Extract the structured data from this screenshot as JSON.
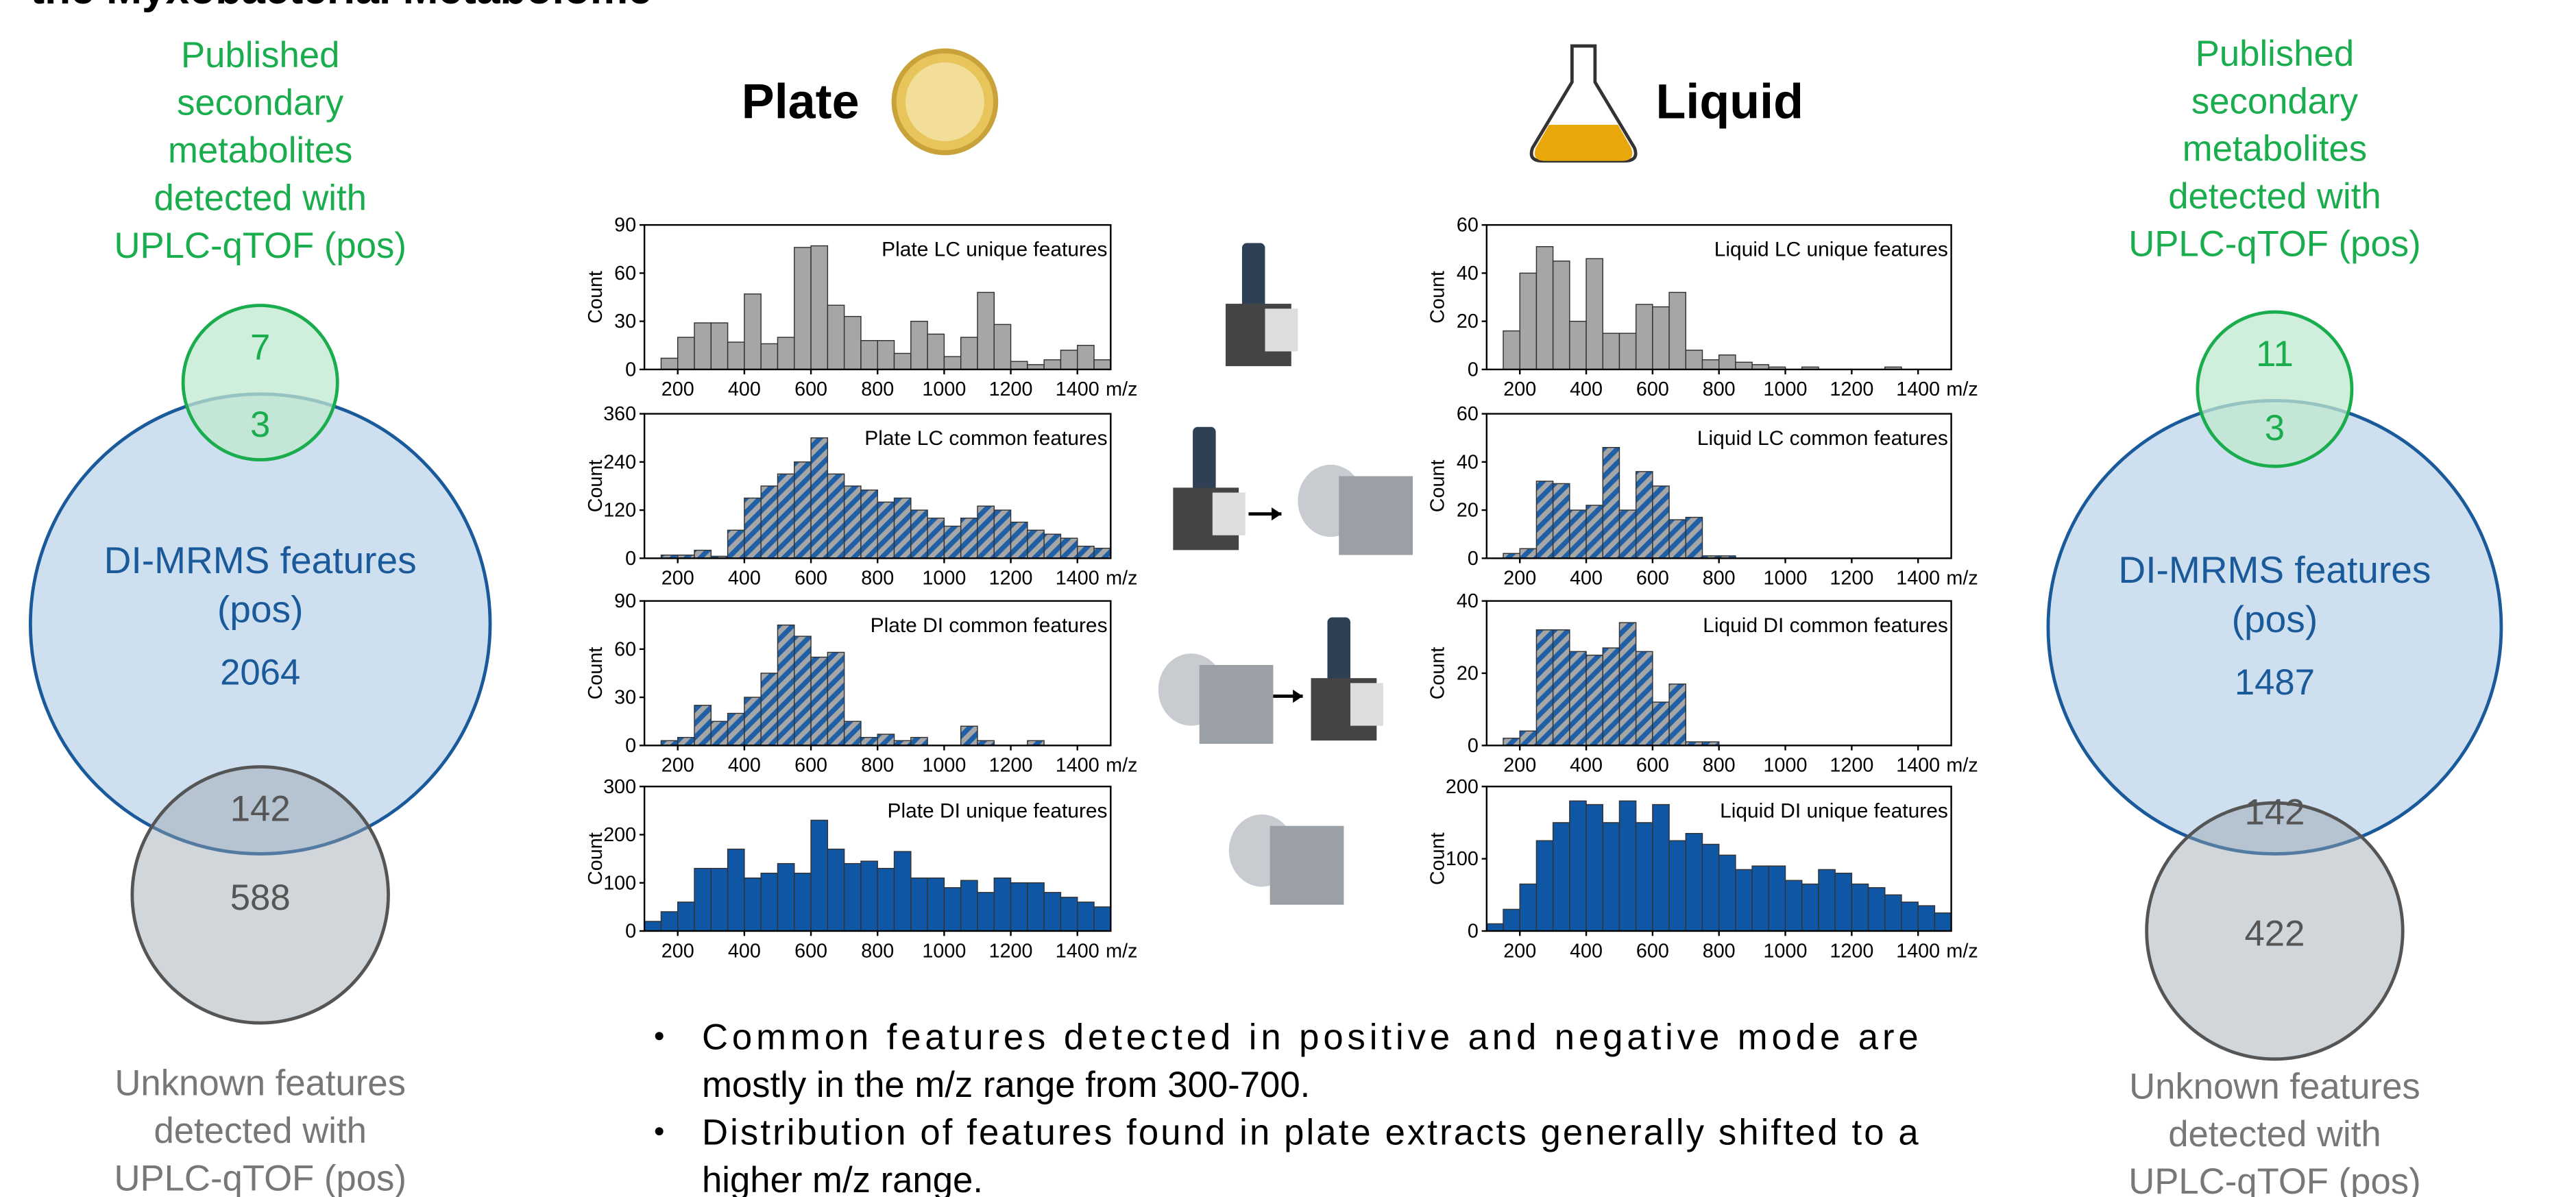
{
  "title": "the Myxobacterial Metabolome",
  "headers": {
    "plate": "Plate",
    "liquid": "Liquid"
  },
  "venn_left": {
    "published_label": [
      "Published",
      "secondary",
      "metabolites",
      "detected with",
      "UPLC-qTOF (pos)"
    ],
    "published_only": 7,
    "overlap_published": 3,
    "di_label": [
      "DI-MRMS features",
      "(pos)"
    ],
    "di_count": 2064,
    "overlap_unknown": 142,
    "unknown_only": 588,
    "unknown_label": [
      "Unknown features",
      "detected with",
      "UPLC-qTOF (pos)"
    ]
  },
  "venn_right": {
    "published_label": [
      "Published",
      "secondary",
      "metabolites",
      "detected with",
      "UPLC-qTOF (pos)"
    ],
    "published_only": 11,
    "overlap_published": 3,
    "di_label": [
      "DI-MRMS features",
      "(pos)"
    ],
    "di_count": 1487,
    "overlap_unknown": 142,
    "unknown_only": 422,
    "unknown_label": [
      "Unknown features",
      "detected with",
      "UPLC-qTOF (pos)"
    ]
  },
  "bullets": [
    [
      "Common features detected in positive and negative mode are",
      "mostly in the m/z range from 300-700."
    ],
    [
      "Distribution of features found in plate extracts generally shifted to a",
      "higher m/z range."
    ]
  ],
  "chart_data": [
    {
      "type": "histogram",
      "title": "Plate LC unique features",
      "x_label": "m/z",
      "y_label": "Count",
      "color": "#a6a6a6",
      "bins": [
        100,
        150,
        200,
        250,
        300,
        350,
        400,
        450,
        500,
        550,
        600,
        650,
        700,
        750,
        800,
        850,
        900,
        950,
        1000,
        1050,
        1100,
        1150,
        1200,
        1250,
        1300,
        1350,
        1400,
        1450,
        1500
      ],
      "counts": [
        0,
        7,
        20,
        29,
        29,
        17,
        47,
        16,
        20,
        76,
        77,
        40,
        33,
        18,
        18,
        10,
        30,
        22,
        8,
        20,
        48,
        28,
        5,
        3,
        6,
        12,
        15,
        6
      ],
      "xlim": [
        100,
        1500
      ],
      "xticks": [
        200,
        400,
        600,
        800,
        1000,
        1200,
        1400
      ],
      "ylim": [
        0,
        90
      ],
      "yticks": [
        0,
        30,
        60,
        90
      ]
    },
    {
      "type": "histogram",
      "title": "Plate LC common features",
      "x_label": "m/z",
      "y_label": "Count",
      "color": "#a6a6a6",
      "hatch_color": "#1f5fa6",
      "bins": [
        100,
        150,
        200,
        250,
        300,
        350,
        400,
        450,
        500,
        550,
        600,
        650,
        700,
        750,
        800,
        850,
        900,
        950,
        1000,
        1050,
        1100,
        1150,
        1200,
        1250,
        1300,
        1350,
        1400,
        1450,
        1500
      ],
      "counts": [
        0,
        8,
        8,
        20,
        5,
        70,
        150,
        180,
        210,
        240,
        300,
        210,
        180,
        170,
        140,
        150,
        120,
        100,
        80,
        100,
        130,
        120,
        90,
        70,
        60,
        50,
        30,
        25
      ],
      "xlim": [
        100,
        1500
      ],
      "xticks": [
        200,
        400,
        600,
        800,
        1000,
        1200,
        1400
      ],
      "ylim": [
        0,
        360
      ],
      "yticks": [
        0,
        120,
        240,
        360
      ]
    },
    {
      "type": "histogram",
      "title": "Plate DI common features",
      "x_label": "m/z",
      "y_label": "Count",
      "color": "#1f5fa6",
      "hatch_color": "#a6a6a6",
      "bins": [
        100,
        150,
        200,
        250,
        300,
        350,
        400,
        450,
        500,
        550,
        600,
        650,
        700,
        750,
        800,
        850,
        900,
        950,
        1000,
        1050,
        1100,
        1150,
        1200,
        1250,
        1300,
        1350,
        1400,
        1450,
        1500
      ],
      "counts": [
        0,
        3,
        5,
        25,
        15,
        20,
        30,
        45,
        75,
        68,
        55,
        58,
        15,
        5,
        7,
        3,
        5,
        0,
        0,
        12,
        3,
        0,
        0,
        3,
        0,
        0,
        0,
        0
      ],
      "xlim": [
        100,
        1500
      ],
      "xticks": [
        200,
        400,
        600,
        800,
        1000,
        1200,
        1400
      ],
      "ylim": [
        0,
        90
      ],
      "yticks": [
        0,
        30,
        60,
        90
      ]
    },
    {
      "type": "histogram",
      "title": "Plate DI unique features",
      "x_label": "m/z",
      "y_label": "Count",
      "color": "#0f57a5",
      "bins": [
        100,
        150,
        200,
        250,
        300,
        350,
        400,
        450,
        500,
        550,
        600,
        650,
        700,
        750,
        800,
        850,
        900,
        950,
        1000,
        1050,
        1100,
        1150,
        1200,
        1250,
        1300,
        1350,
        1400,
        1450,
        1500
      ],
      "counts": [
        20,
        40,
        60,
        130,
        130,
        170,
        110,
        120,
        140,
        120,
        230,
        170,
        140,
        145,
        130,
        165,
        110,
        110,
        90,
        105,
        80,
        110,
        100,
        100,
        80,
        70,
        60,
        50
      ],
      "xlim": [
        100,
        1500
      ],
      "xticks": [
        200,
        400,
        600,
        800,
        1000,
        1200,
        1400
      ],
      "ylim": [
        0,
        300
      ],
      "yticks": [
        0,
        100,
        200,
        300
      ]
    },
    {
      "type": "histogram",
      "title": "Liquid LC unique features",
      "x_label": "m/z",
      "y_label": "Count",
      "color": "#a6a6a6",
      "bins": [
        100,
        150,
        200,
        250,
        300,
        350,
        400,
        450,
        500,
        550,
        600,
        650,
        700,
        750,
        800,
        850,
        900,
        950,
        1000,
        1050,
        1100,
        1150,
        1200,
        1250,
        1300,
        1350,
        1400,
        1450,
        1500
      ],
      "counts": [
        0,
        16,
        40,
        51,
        45,
        20,
        46,
        15,
        15,
        27,
        26,
        32,
        8,
        4,
        6,
        3,
        2,
        1,
        0,
        1,
        0,
        0,
        0,
        0,
        1,
        0,
        0,
        0
      ],
      "xlim": [
        100,
        1500
      ],
      "xticks": [
        200,
        400,
        600,
        800,
        1000,
        1200,
        1400
      ],
      "ylim": [
        0,
        60
      ],
      "yticks": [
        0,
        20,
        40,
        60
      ]
    },
    {
      "type": "histogram",
      "title": "Liquid LC common features",
      "x_label": "m/z",
      "y_label": "Count",
      "color": "#a6a6a6",
      "hatch_color": "#1f5fa6",
      "bins": [
        100,
        150,
        200,
        250,
        300,
        350,
        400,
        450,
        500,
        550,
        600,
        650,
        700,
        750,
        800,
        850,
        900,
        950,
        1000,
        1050,
        1100,
        1150,
        1200,
        1250,
        1300,
        1350,
        1400,
        1450,
        1500
      ],
      "counts": [
        0,
        2,
        4,
        32,
        31,
        20,
        22,
        46,
        20,
        36,
        30,
        16,
        17,
        1,
        1,
        0,
        0,
        0,
        0,
        0,
        0,
        0,
        0,
        0,
        0,
        0,
        0,
        0
      ],
      "xlim": [
        100,
        1500
      ],
      "xticks": [
        200,
        400,
        600,
        800,
        1000,
        1200,
        1400
      ],
      "ylim": [
        0,
        60
      ],
      "yticks": [
        0,
        20,
        40,
        60
      ]
    },
    {
      "type": "histogram",
      "title": "Liquid DI common features",
      "x_label": "m/z",
      "y_label": "Count",
      "color": "#1f5fa6",
      "hatch_color": "#a6a6a6",
      "bins": [
        100,
        150,
        200,
        250,
        300,
        350,
        400,
        450,
        500,
        550,
        600,
        650,
        700,
        750,
        800,
        850,
        900,
        950,
        1000,
        1050,
        1100,
        1150,
        1200,
        1250,
        1300,
        1350,
        1400,
        1450,
        1500
      ],
      "counts": [
        0,
        2,
        4,
        32,
        32,
        26,
        25,
        27,
        34,
        26,
        12,
        17,
        1,
        1,
        0,
        0,
        0,
        0,
        0,
        0,
        0,
        0,
        0,
        0,
        0,
        0,
        0,
        0
      ],
      "xlim": [
        100,
        1500
      ],
      "xticks": [
        200,
        400,
        600,
        800,
        1000,
        1200,
        1400
      ],
      "ylim": [
        0,
        40
      ],
      "yticks": [
        0,
        20,
        40
      ]
    },
    {
      "type": "histogram",
      "title": "Liquid DI unique features",
      "x_label": "m/z",
      "y_label": "Count",
      "color": "#0f57a5",
      "bins": [
        100,
        150,
        200,
        250,
        300,
        350,
        400,
        450,
        500,
        550,
        600,
        650,
        700,
        750,
        800,
        850,
        900,
        950,
        1000,
        1050,
        1100,
        1150,
        1200,
        1250,
        1300,
        1350,
        1400,
        1450,
        1500
      ],
      "counts": [
        10,
        30,
        65,
        125,
        150,
        180,
        175,
        150,
        180,
        150,
        175,
        125,
        135,
        120,
        105,
        85,
        90,
        90,
        70,
        65,
        85,
        80,
        65,
        60,
        50,
        40,
        35,
        25
      ],
      "xlim": [
        100,
        1500
      ],
      "xticks": [
        200,
        400,
        600,
        800,
        1000,
        1200,
        1400
      ],
      "ylim": [
        0,
        200
      ],
      "yticks": [
        0,
        100,
        200
      ]
    }
  ]
}
